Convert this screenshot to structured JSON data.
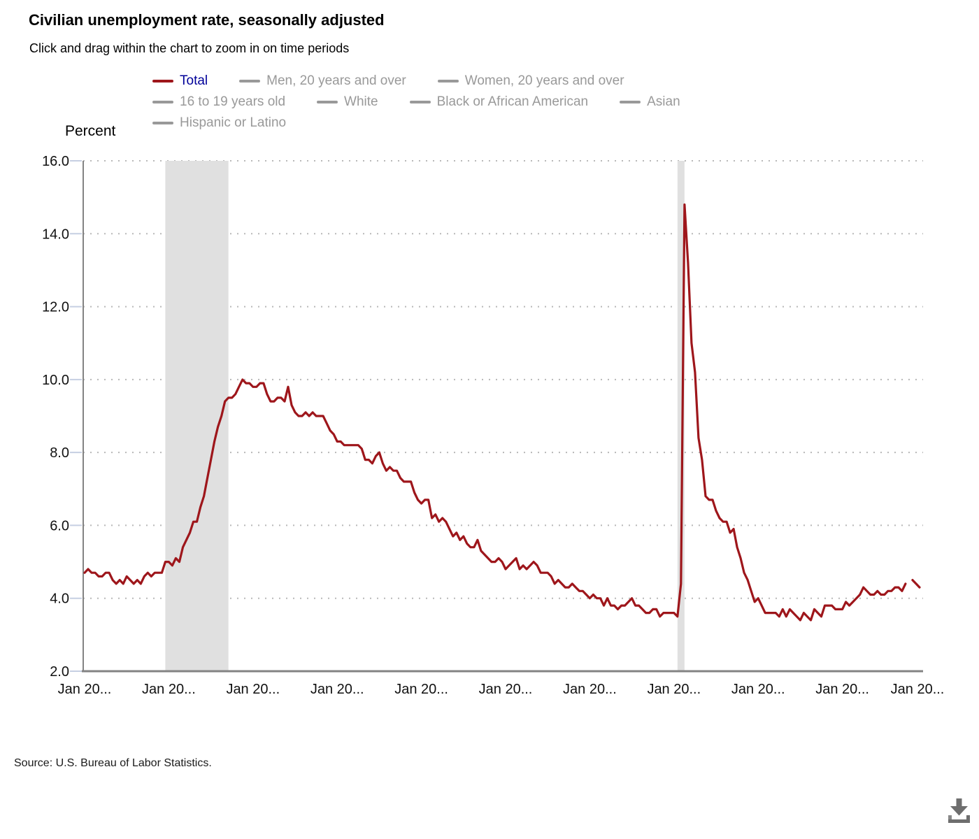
{
  "header": {
    "title": "Civilian unemployment rate, seasonally adjusted",
    "subtitle": "Click and drag within the chart to zoom in on time periods"
  },
  "legend": {
    "selected_text_color": "#000099",
    "selected_swatch_color": "#9e161b",
    "unselected_color": "#999999",
    "rows": [
      [
        {
          "label": "Total",
          "selected": true
        },
        {
          "label": "Men, 20 years and over",
          "selected": false
        },
        {
          "label": "Women, 20 years and over",
          "selected": false
        }
      ],
      [
        {
          "label": "16 to 19 years old",
          "selected": false
        },
        {
          "label": "White",
          "selected": false
        },
        {
          "label": "Black or African American",
          "selected": false
        },
        {
          "label": "Asian",
          "selected": false
        }
      ],
      [
        {
          "label": "Hispanic or Latino",
          "selected": false
        }
      ]
    ]
  },
  "y_axis": {
    "label": "Percent",
    "tick_labels": [
      "16.0",
      "14.0",
      "12.0",
      "10.0",
      "8.0",
      "6.0",
      "4.0",
      "2.0"
    ]
  },
  "x_axis": {
    "tick_label": "Jan 20...",
    "tick_count": 11
  },
  "chart_data": {
    "type": "line",
    "title": "Civilian unemployment rate, seasonally adjusted",
    "ylabel": "Percent",
    "ylim": [
      2.0,
      16.0
    ],
    "y_ticks": [
      2.0,
      4.0,
      6.0,
      8.0,
      10.0,
      12.0,
      14.0,
      16.0
    ],
    "x_start_month": "2006-01",
    "x_end_month": "2025-12",
    "x_tick_interval_months": 24,
    "grid": "dotted-horizontal",
    "legend_position": "top",
    "line_color": "#9e161b",
    "recession_band_color": "#e0e0e0",
    "recession_bands": [
      {
        "from": "2007-12",
        "to": "2009-06"
      },
      {
        "from": "2020-02",
        "to": "2020-04"
      }
    ],
    "series": [
      {
        "name": "Total",
        "values_by_year": {
          "2006": [
            4.7,
            4.8,
            4.7,
            4.7,
            4.6,
            4.6,
            4.7,
            4.7,
            4.5,
            4.4,
            4.5,
            4.4
          ],
          "2007": [
            4.6,
            4.5,
            4.4,
            4.5,
            4.4,
            4.6,
            4.7,
            4.6,
            4.7,
            4.7,
            4.7,
            5.0
          ],
          "2008": [
            5.0,
            4.9,
            5.1,
            5.0,
            5.4,
            5.6,
            5.8,
            6.1,
            6.1,
            6.5,
            6.8,
            7.3
          ],
          "2009": [
            7.8,
            8.3,
            8.7,
            9.0,
            9.4,
            9.5,
            9.5,
            9.6,
            9.8,
            10.0,
            9.9,
            9.9
          ],
          "2010": [
            9.8,
            9.8,
            9.9,
            9.9,
            9.6,
            9.4,
            9.4,
            9.5,
            9.5,
            9.4,
            9.8,
            9.3
          ],
          "2011": [
            9.1,
            9.0,
            9.0,
            9.1,
            9.0,
            9.1,
            9.0,
            9.0,
            9.0,
            8.8,
            8.6,
            8.5
          ],
          "2012": [
            8.3,
            8.3,
            8.2,
            8.2,
            8.2,
            8.2,
            8.2,
            8.1,
            7.8,
            7.8,
            7.7,
            7.9
          ],
          "2013": [
            8.0,
            7.7,
            7.5,
            7.6,
            7.5,
            7.5,
            7.3,
            7.2,
            7.2,
            7.2,
            6.9,
            6.7
          ],
          "2014": [
            6.6,
            6.7,
            6.7,
            6.2,
            6.3,
            6.1,
            6.2,
            6.1,
            5.9,
            5.7,
            5.8,
            5.6
          ],
          "2015": [
            5.7,
            5.5,
            5.4,
            5.4,
            5.6,
            5.3,
            5.2,
            5.1,
            5.0,
            5.0,
            5.1,
            5.0
          ],
          "2016": [
            4.8,
            4.9,
            5.0,
            5.1,
            4.8,
            4.9,
            4.8,
            4.9,
            5.0,
            4.9,
            4.7,
            4.7
          ],
          "2017": [
            4.7,
            4.6,
            4.4,
            4.5,
            4.4,
            4.3,
            4.3,
            4.4,
            4.3,
            4.2,
            4.2,
            4.1
          ],
          "2018": [
            4.0,
            4.1,
            4.0,
            4.0,
            3.8,
            4.0,
            3.8,
            3.8,
            3.7,
            3.8,
            3.8,
            3.9
          ],
          "2019": [
            4.0,
            3.8,
            3.8,
            3.7,
            3.6,
            3.6,
            3.7,
            3.7,
            3.5,
            3.6,
            3.6,
            3.6
          ],
          "2020": [
            3.6,
            3.5,
            4.4,
            14.8,
            13.2,
            11.0,
            10.2,
            8.4,
            7.8,
            6.8,
            6.7,
            6.7
          ],
          "2021": [
            6.4,
            6.2,
            6.1,
            6.1,
            5.8,
            5.9,
            5.4,
            5.1,
            4.7,
            4.5,
            4.2,
            3.9
          ],
          "2022": [
            4.0,
            3.8,
            3.6,
            3.6,
            3.6,
            3.6,
            3.5,
            3.7,
            3.5,
            3.7,
            3.6,
            3.5
          ],
          "2023": [
            3.4,
            3.6,
            3.5,
            3.4,
            3.7,
            3.6,
            3.5,
            3.8,
            3.8,
            3.8,
            3.7,
            3.7
          ],
          "2024": [
            3.7,
            3.9,
            3.8,
            3.9,
            4.0,
            4.1,
            4.3,
            4.2,
            4.1,
            4.1,
            4.2,
            4.1
          ],
          "2025": [
            4.1,
            4.2,
            4.2,
            4.3,
            4.3,
            4.2,
            4.4,
            null,
            4.5,
            4.4,
            4.3,
            null
          ]
        }
      }
    ]
  },
  "source": {
    "text": "Source: U.S. Bureau of Labor Statistics."
  },
  "icons": {
    "download": "download-icon"
  }
}
